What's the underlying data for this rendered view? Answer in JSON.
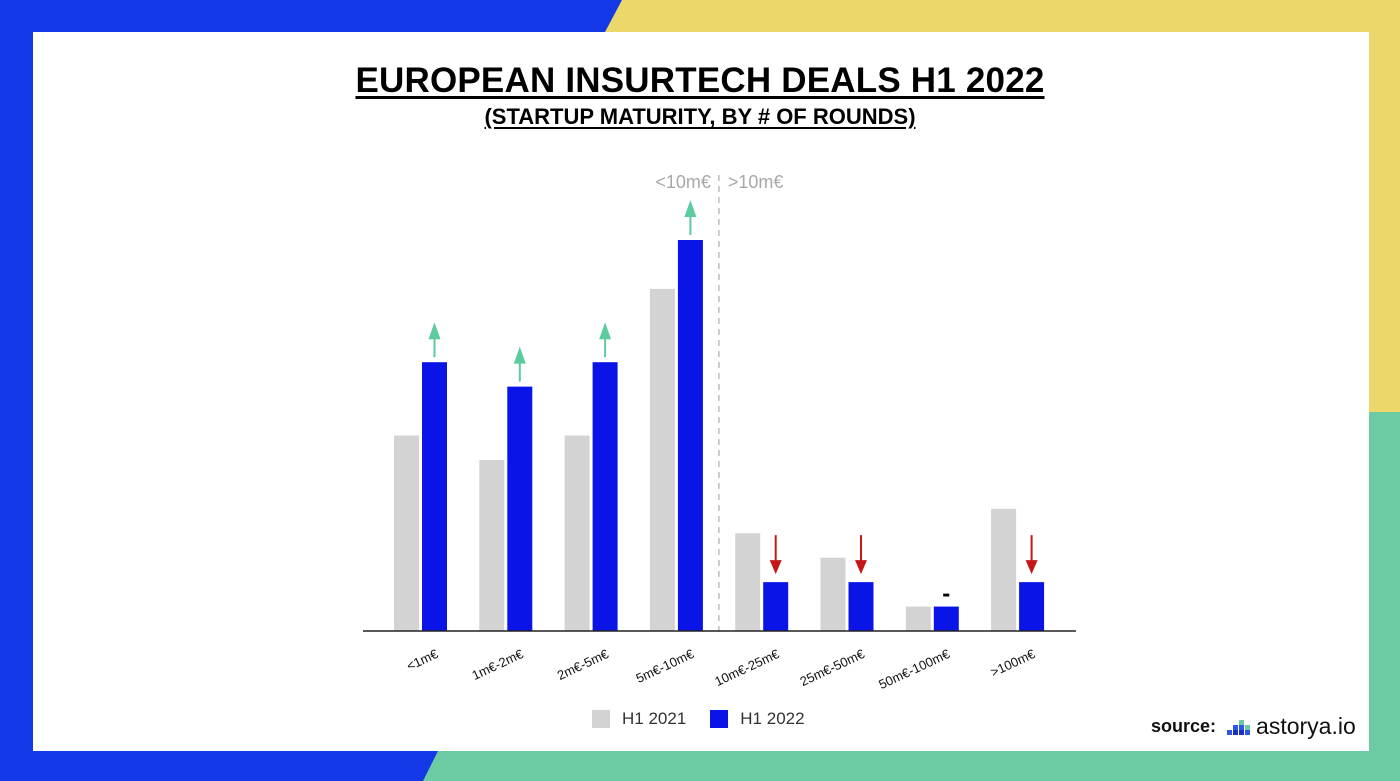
{
  "title": "EUROPEAN INSURTECH DEALS H1 2022",
  "subtitle": "(STARTUP MATURITY, BY # OF ROUNDS)",
  "colors": {
    "h1_2021": "#d3d3d3",
    "h1_2022": "#0a14e6",
    "up_arrow": "#5ccba0",
    "down_arrow": "#c41818",
    "bg_blue": "#1338e6",
    "bg_yellow": "#ecd86a",
    "bg_green": "#6ccba3"
  },
  "chart_data": {
    "type": "bar",
    "title": "EUROPEAN INSURTECH DEALS H1 2022",
    "subtitle": "(STARTUP MATURITY, BY # OF ROUNDS)",
    "categories": [
      "<1m€",
      "1m€-2m€",
      "2m€-5m€",
      "5m€-10m€",
      "10m€-25m€",
      "25m€-50m€",
      "50m€-100m€",
      ">100m€"
    ],
    "series": [
      {
        "name": "H1 2021",
        "values": [
          8,
          7,
          8,
          14,
          4,
          3,
          1,
          5
        ]
      },
      {
        "name": "H1 2022",
        "values": [
          11,
          10,
          11,
          16,
          2,
          2,
          1,
          2
        ]
      }
    ],
    "ylim": [
      0,
      18
    ],
    "grid": false,
    "legend": "bottom",
    "trends": [
      "up",
      "up",
      "up",
      "up",
      "down",
      "down",
      "flat",
      "down"
    ],
    "flat_marker": "-",
    "divider_labels": {
      "left": "<10m€",
      "right": ">10m€"
    },
    "divider_after_index": 3
  },
  "legend": {
    "items": [
      "H1 2021",
      "H1 2022"
    ]
  },
  "source": {
    "label": "source:",
    "logo_text": "astorya.io",
    "logo_icon": "bar-chart-logo-icon"
  }
}
